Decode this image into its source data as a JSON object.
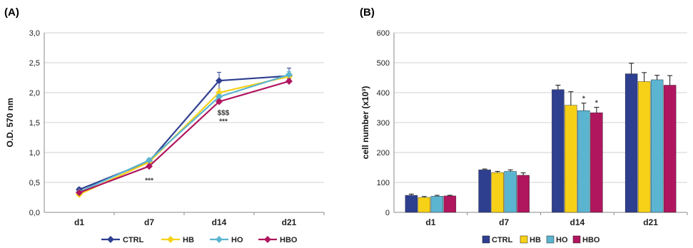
{
  "colors": {
    "CTRL": "#2f3f8f",
    "HB": "#f7d117",
    "HO": "#5bb4d0",
    "HBO": "#b0165e"
  },
  "chart_data": [
    {
      "panel": "(A)",
      "type": "line",
      "ylabel": "O.D. 570 nm",
      "ylim": [
        0,
        3
      ],
      "yticks": [
        "0,0",
        "0,5",
        "1,0",
        "1,5",
        "2,0",
        "2,5",
        "3,0"
      ],
      "categories": [
        "d1",
        "d7",
        "d14",
        "d21"
      ],
      "grid": true,
      "legend": "bottom",
      "series": [
        {
          "name": "CTRL",
          "values": [
            0.38,
            0.85,
            2.2,
            2.28
          ],
          "errors": [
            0.03,
            0.03,
            0.14,
            0.13
          ]
        },
        {
          "name": "HB",
          "values": [
            0.3,
            0.84,
            2.0,
            2.27
          ],
          "errors": [
            0.02,
            0.03,
            0.06,
            0.05
          ]
        },
        {
          "name": "HO",
          "values": [
            0.34,
            0.87,
            1.93,
            2.3
          ],
          "errors": [
            0.02,
            0.03,
            0.04,
            0.05
          ]
        },
        {
          "name": "HBO",
          "values": [
            0.33,
            0.77,
            1.85,
            2.19
          ],
          "errors": [
            0.02,
            0.02,
            0.03,
            0.04
          ]
        }
      ],
      "annotations": [
        {
          "category": "d7",
          "text": "***"
        },
        {
          "category": "d14",
          "text": "$$$"
        },
        {
          "category": "d14",
          "text": "***"
        }
      ]
    },
    {
      "panel": "(B)",
      "type": "bar",
      "ylabel": "cell number (x10³)",
      "ylim": [
        0,
        600
      ],
      "yticks": [
        "0",
        "100",
        "200",
        "300",
        "400",
        "500",
        "600"
      ],
      "categories": [
        "d1",
        "d7",
        "d14",
        "d21"
      ],
      "grid": true,
      "legend": "bottom",
      "series": [
        {
          "name": "CTRL",
          "values": [
            57,
            142,
            410,
            463
          ],
          "errors": [
            4,
            3,
            15,
            35
          ]
        },
        {
          "name": "HB",
          "values": [
            50,
            133,
            358,
            437
          ],
          "errors": [
            3,
            4,
            45,
            30
          ]
        },
        {
          "name": "HO",
          "values": [
            54,
            137,
            340,
            443
          ],
          "errors": [
            3,
            5,
            25,
            15
          ]
        },
        {
          "name": "HBO",
          "values": [
            55,
            124,
            333,
            425
          ],
          "errors": [
            2,
            8,
            18,
            32
          ]
        }
      ],
      "annotations": [
        {
          "category": "d14",
          "series": "HO",
          "text": "*"
        },
        {
          "category": "d14",
          "series": "HBO",
          "text": "*"
        }
      ]
    }
  ]
}
